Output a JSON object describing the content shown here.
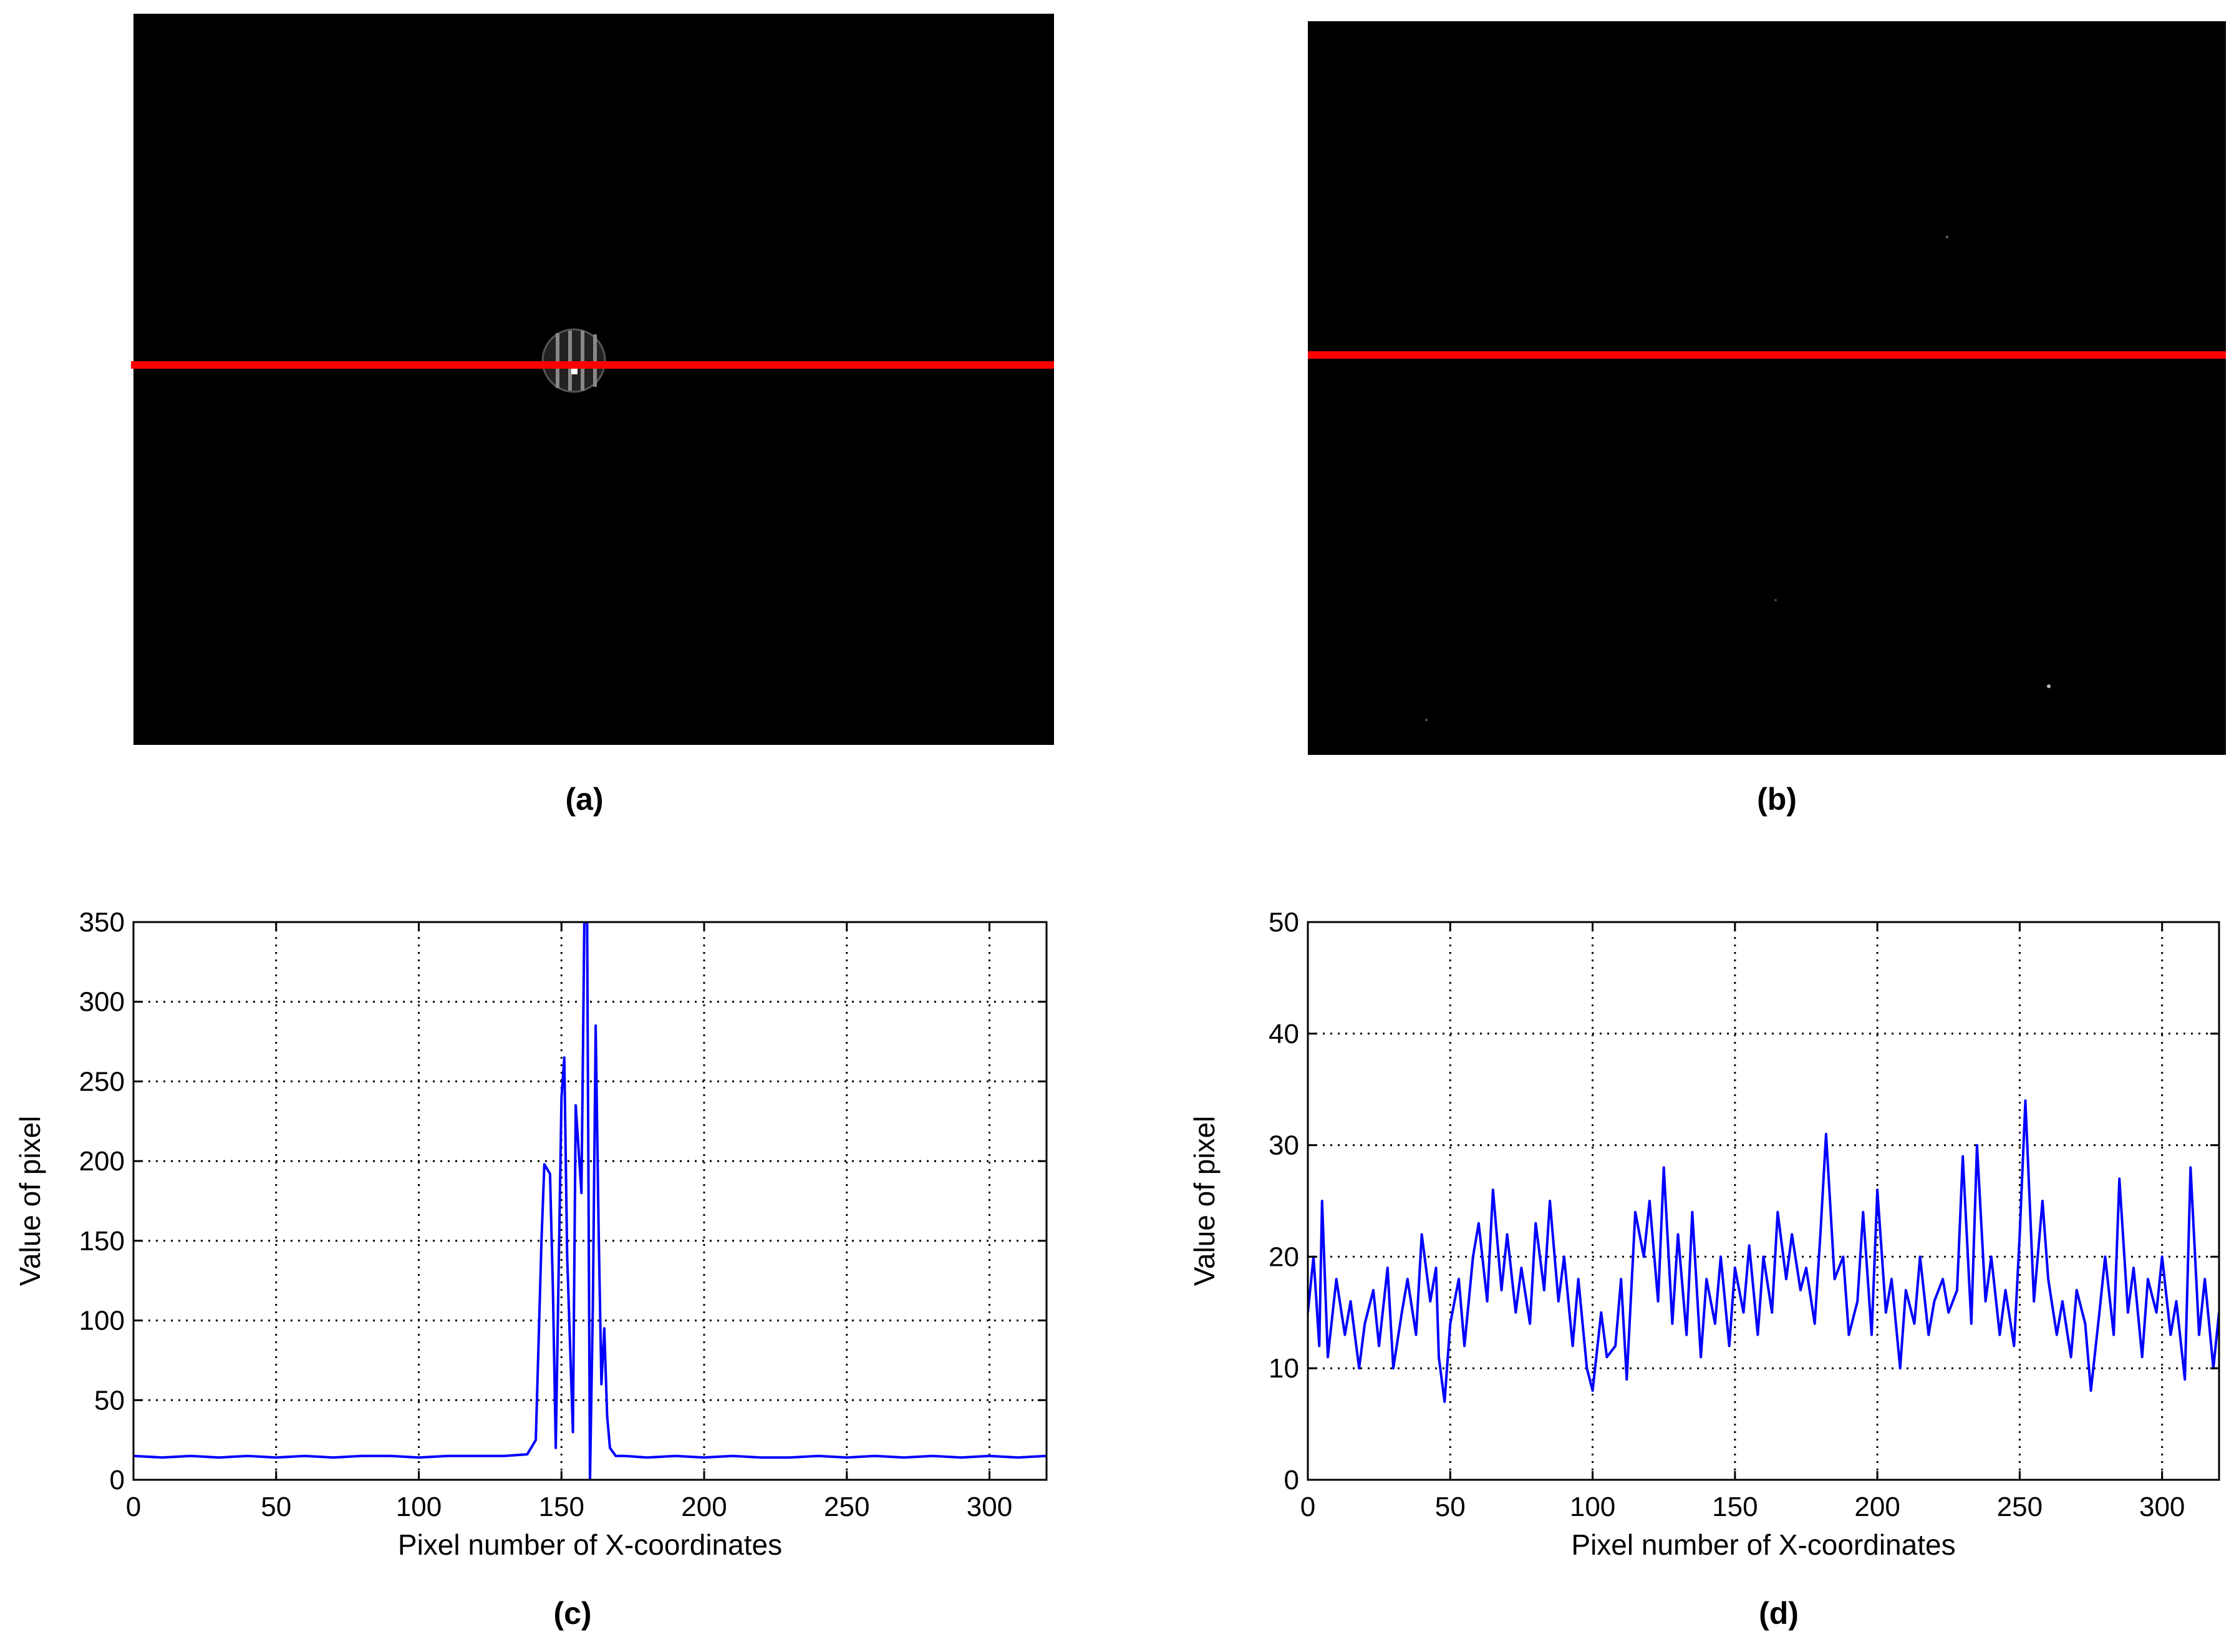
{
  "panels": {
    "a": {
      "caption": "(a)",
      "line_color": "#ff0000"
    },
    "b": {
      "caption": "(b)",
      "line_color": "#ff0000"
    },
    "c": {
      "caption": "(c)"
    },
    "d": {
      "caption": "(d)"
    }
  },
  "colors": {
    "series": "#0000ff",
    "grid": "#000000",
    "image_bg": "#000000"
  },
  "chart_data": [
    {
      "id": "c",
      "type": "line",
      "title": "",
      "xlabel": "Pixel number of X-coordinates",
      "ylabel": "Value of pixel",
      "xlim": [
        0,
        320
      ],
      "ylim": [
        0,
        350
      ],
      "xticks": [
        0,
        50,
        100,
        150,
        200,
        250,
        300
      ],
      "yticks": [
        0,
        50,
        100,
        150,
        200,
        250,
        300,
        350
      ],
      "grid": true,
      "series": [
        {
          "x": [
            0,
            10,
            20,
            30,
            40,
            50,
            60,
            70,
            80,
            90,
            100,
            110,
            120,
            130,
            138,
            141,
            143,
            144,
            146,
            147,
            148,
            150,
            151,
            152,
            154,
            155,
            157,
            158,
            159,
            160,
            161,
            162,
            163,
            164,
            165,
            166,
            167,
            169,
            172,
            180,
            190,
            200,
            210,
            220,
            230,
            240,
            250,
            260,
            270,
            280,
            290,
            300,
            310,
            320
          ],
          "y": [
            15,
            14,
            15,
            14,
            15,
            14,
            15,
            14,
            15,
            15,
            14,
            15,
            15,
            15,
            16,
            25,
            150,
            198,
            192,
            120,
            20,
            240,
            265,
            140,
            30,
            235,
            180,
            350,
            350,
            0,
            110,
            285,
            160,
            60,
            95,
            40,
            20,
            15,
            15,
            14,
            15,
            14,
            15,
            14,
            14,
            15,
            14,
            15,
            14,
            15,
            14,
            15,
            14,
            15
          ]
        }
      ]
    },
    {
      "id": "d",
      "type": "line",
      "title": "",
      "xlabel": "Pixel number of X-coordinates",
      "ylabel": "Value of pixel",
      "xlim": [
        0,
        320
      ],
      "ylim": [
        0,
        50
      ],
      "xticks": [
        0,
        50,
        100,
        150,
        200,
        250,
        300
      ],
      "yticks": [
        0,
        10,
        20,
        30,
        40,
        50
      ],
      "grid": true,
      "series": [
        {
          "x": [
            0,
            2,
            4,
            5,
            7,
            10,
            13,
            15,
            18,
            20,
            23,
            25,
            28,
            30,
            33,
            35,
            38,
            40,
            43,
            45,
            46,
            48,
            50,
            53,
            55,
            58,
            60,
            63,
            65,
            68,
            70,
            73,
            75,
            78,
            80,
            83,
            85,
            88,
            90,
            93,
            95,
            98,
            100,
            103,
            105,
            108,
            110,
            112,
            115,
            118,
            120,
            123,
            125,
            128,
            130,
            133,
            135,
            138,
            140,
            143,
            145,
            148,
            150,
            153,
            155,
            158,
            160,
            163,
            165,
            168,
            170,
            173,
            175,
            178,
            180,
            182,
            185,
            188,
            190,
            193,
            195,
            198,
            200,
            203,
            205,
            208,
            210,
            213,
            215,
            218,
            220,
            223,
            225,
            228,
            230,
            233,
            235,
            238,
            240,
            243,
            245,
            248,
            250,
            252,
            255,
            258,
            260,
            263,
            265,
            268,
            270,
            273,
            275,
            278,
            280,
            283,
            285,
            288,
            290,
            293,
            295,
            298,
            300,
            303,
            305,
            308,
            310,
            313,
            315,
            318,
            320
          ],
          "y": [
            15,
            20,
            12,
            25,
            11,
            18,
            13,
            16,
            10,
            14,
            17,
            12,
            19,
            10,
            15,
            18,
            13,
            22,
            16,
            19,
            11,
            7,
            14,
            18,
            12,
            20,
            23,
            16,
            26,
            17,
            22,
            15,
            19,
            14,
            23,
            17,
            25,
            16,
            20,
            12,
            18,
            10,
            8,
            15,
            11,
            12,
            18,
            9,
            24,
            20,
            25,
            16,
            28,
            14,
            22,
            13,
            24,
            11,
            18,
            14,
            20,
            12,
            19,
            15,
            21,
            13,
            20,
            15,
            24,
            18,
            22,
            17,
            19,
            14,
            22,
            31,
            18,
            20,
            13,
            16,
            24,
            13,
            26,
            15,
            18,
            10,
            17,
            14,
            20,
            13,
            16,
            18,
            15,
            17,
            29,
            14,
            30,
            16,
            20,
            13,
            17,
            12,
            22,
            34,
            16,
            25,
            18,
            13,
            16,
            11,
            17,
            14,
            8,
            15,
            20,
            13,
            27,
            15,
            19,
            11,
            18,
            15,
            20,
            13,
            16,
            9,
            28,
            13,
            18,
            10,
            15
          ]
        }
      ]
    }
  ]
}
